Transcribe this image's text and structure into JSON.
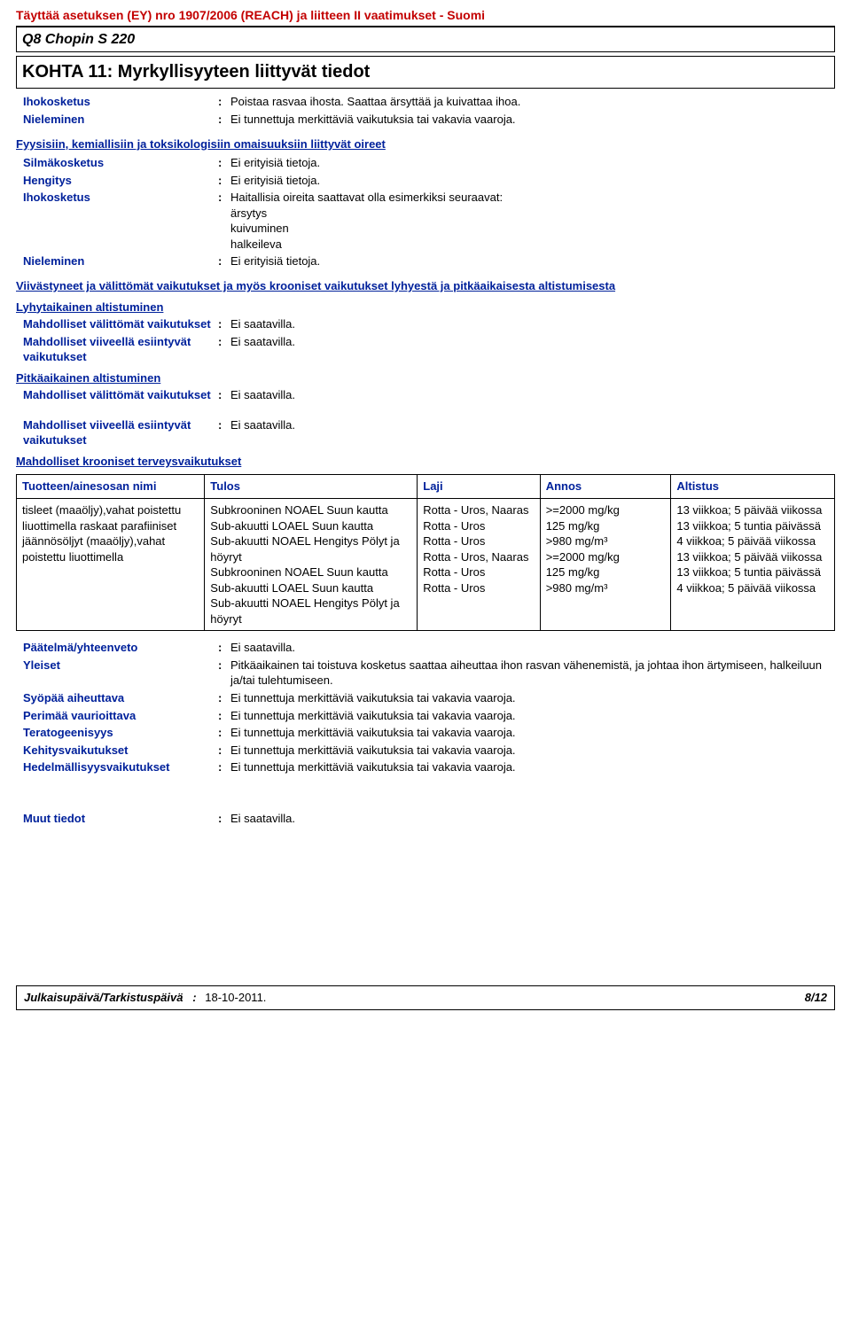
{
  "header": {
    "regulation": "Täyttää asetuksen (EY) nro 1907/2006 (REACH) ja liitteen II vaatimukset - Suomi",
    "product": "Q8 Chopin S 220",
    "section_title": "KOHTA 11: Myrkyllisyyteen liittyvät tiedot"
  },
  "intro_rows": [
    {
      "label": "Ihokosketus",
      "value": "Poistaa rasvaa ihosta. Saattaa ärsyttää ja kuivattaa ihoa."
    },
    {
      "label": "Nieleminen",
      "value": "Ei tunnettuja merkittäviä vaikutuksia tai vakavia vaaroja."
    }
  ],
  "phys_heading": "Fyysisiin, kemiallisiin ja toksikologisiin omaisuuksiin liittyvät oireet",
  "phys_rows": [
    {
      "label": "Silmäkosketus",
      "value": "Ei erityisiä tietoja."
    },
    {
      "label": "Hengitys",
      "value": "Ei erityisiä tietoja."
    }
  ],
  "ihokosketus": {
    "label": "Ihokosketus",
    "lead": "Haitallisia oireita saattavat olla esimerkiksi seuraavat:",
    "lines": [
      "ärsytys",
      "kuivuminen",
      "halkeileva"
    ]
  },
  "nieleminen2": {
    "label": "Nieleminen",
    "value": "Ei erityisiä tietoja."
  },
  "delayed_heading": "Viivästyneet ja välittömät vaikutukset ja myös krooniset vaikutukset lyhyestä ja pitkäaikaisesta altistumisesta",
  "short_heading": "Lyhytaikainen altistuminen",
  "short_rows": [
    {
      "label": "Mahdolliset välittömät vaikutukset",
      "value": "Ei saatavilla."
    },
    {
      "label": "Mahdolliset viiveellä esiintyvät vaikutukset",
      "value": "Ei saatavilla."
    }
  ],
  "long_heading": "Pitkäaikainen altistuminen",
  "long_rows": [
    {
      "label": "Mahdolliset välittömät vaikutukset",
      "value": "Ei saatavilla."
    },
    {
      "label": "Mahdolliset viiveellä esiintyvät vaikutukset",
      "value": "Ei saatavilla."
    }
  ],
  "chronic_heading": "Mahdolliset krooniset terveysvaikutukset",
  "table": {
    "columns": [
      "Tuotteen/ainesosan nimi",
      "Tulos",
      "Laji",
      "Annos",
      "Altistus"
    ],
    "groups": [
      {
        "name": "tisleet (maaöljy),vahat poistettu liuottimella raskaat parafiiniset",
        "rows": [
          {
            "tulos": "Subkrooninen NOAEL Suun kautta",
            "laji": "Rotta - Uros, Naaras",
            "annos": ">=2000 mg/kg",
            "altistus": "13 viikkoa; 5 päivää viikossa"
          },
          {
            "tulos": "Sub-akuutti LOAEL Suun kautta",
            "laji": "Rotta - Uros",
            "annos": "125 mg/kg",
            "altistus": "13 viikkoa; 5 tuntia päivässä"
          },
          {
            "tulos": "Sub-akuutti NOAEL Hengitys Pölyt ja höyryt",
            "laji": "Rotta - Uros",
            "annos": ">980 mg/m³",
            "altistus": "4 viikkoa; 5 päivää viikossa"
          }
        ]
      },
      {
        "name": "jäännösöljyt (maaöljy),vahat poistettu liuottimella",
        "rows": [
          {
            "tulos": "Subkrooninen NOAEL Suun kautta",
            "laji": "Rotta - Uros, Naaras",
            "annos": ">=2000 mg/kg",
            "altistus": "13 viikkoa; 5 päivää viikossa"
          },
          {
            "tulos": "Sub-akuutti LOAEL Suun kautta",
            "laji": "Rotta - Uros",
            "annos": "125 mg/kg",
            "altistus": "13 viikkoa; 5 tuntia päivässä"
          },
          {
            "tulos": "Sub-akuutti NOAEL Hengitys Pölyt ja höyryt",
            "laji": "Rotta - Uros",
            "annos": ">980 mg/m³",
            "altistus": "4 viikkoa; 5 päivää viikossa"
          }
        ]
      }
    ]
  },
  "conclusions": [
    {
      "label": "Päätelmä/yhteenveto",
      "value": "Ei saatavilla."
    },
    {
      "label": "Yleiset",
      "value": "Pitkäaikainen tai toistuva kosketus saattaa aiheuttaa ihon rasvan vähenemistä, ja johtaa ihon ärtymiseen, halkeiluun ja/tai tulehtumiseen."
    },
    {
      "label": "Syöpää aiheuttava",
      "value": "Ei tunnettuja merkittäviä vaikutuksia tai vakavia vaaroja."
    },
    {
      "label": "Perimää vaurioittava",
      "value": "Ei tunnettuja merkittäviä vaikutuksia tai vakavia vaaroja."
    },
    {
      "label": "Teratogeenisyys",
      "value": "Ei tunnettuja merkittäviä vaikutuksia tai vakavia vaaroja."
    },
    {
      "label": "Kehitysvaikutukset",
      "value": "Ei tunnettuja merkittäviä vaikutuksia tai vakavia vaaroja."
    },
    {
      "label": "Hedelmällisyysvaikutukset",
      "value": "Ei tunnettuja merkittäviä vaikutuksia tai vakavia vaaroja."
    }
  ],
  "other_info": {
    "label": "Muut tiedot",
    "value": "Ei saatavilla."
  },
  "footer": {
    "label": "Julkaisupäivä/Tarkistuspäivä",
    "date": "18-10-2011.",
    "page": "8/12"
  },
  "colors": {
    "brand_red": "#c30000",
    "brand_blue": "#00219b",
    "border": "#000000",
    "bg": "#ffffff"
  }
}
